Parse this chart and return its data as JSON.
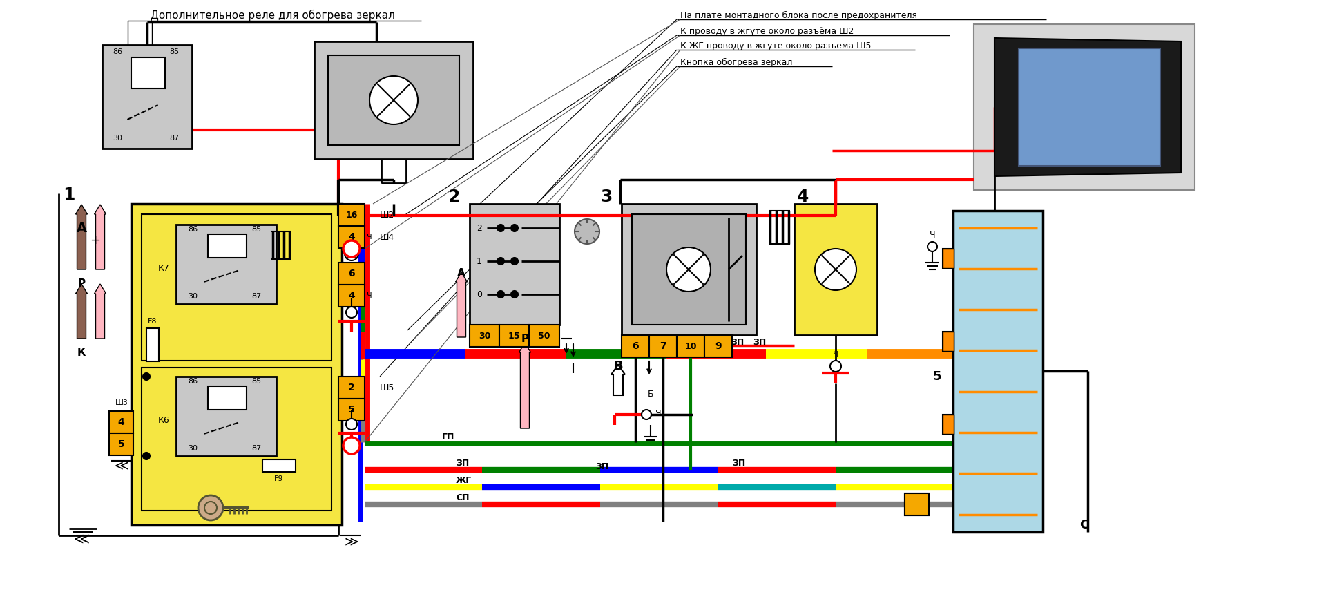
{
  "bg_color": "#ffffff",
  "annotations": {
    "relay_label": "Дополнительное реле для обогрева зеркал",
    "ann1": "На плате монтадного блока после предохранителя",
    "ann2": "К проводу в жгуте около разъёма Ш2",
    "ann3": "К ЖГ проводу в жгуте около разъема Ш5",
    "ann4": "Кнопка обогрева зеркал"
  },
  "colors": {
    "yellow_bg": "#F5E642",
    "gray_relay": "#AAAAAA",
    "red": "#FF0000",
    "black": "#000000",
    "blue": "#0000FF",
    "green": "#008000",
    "pink": "#FFB6C1",
    "brown": "#8B6050",
    "gold": "#FFD700",
    "label_bg": "#F5A800",
    "white": "#FFFFFF",
    "light_blue": "#ADD8E6",
    "light_gray": "#C8C8C8",
    "dark_gray": "#888888",
    "orange": "#FF8C00",
    "yellow_wire": "#FFFF00",
    "cyan": "#00FFFF",
    "gray_wire": "#808080"
  }
}
